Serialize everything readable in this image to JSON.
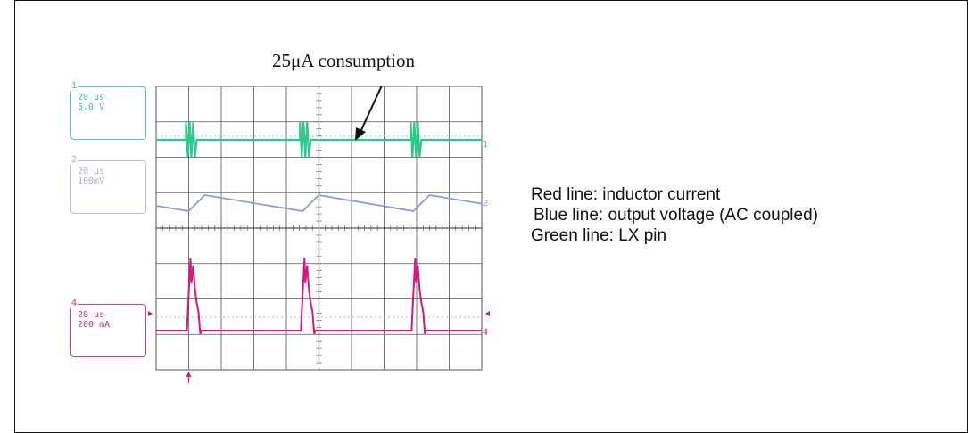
{
  "annotation": "25μA consumption",
  "channels": [
    {
      "num": "1",
      "timebase": "20 μs",
      "scale": "5.0 V",
      "color": "#2ec98a",
      "marker": "1"
    },
    {
      "num": "2",
      "timebase": "20 μs",
      "scale": "100mV",
      "color": "#8f9be0",
      "marker": "2"
    },
    {
      "num": "4",
      "timebase": "20 μs",
      "scale": "200 mA",
      "color": "#d6177e",
      "marker": "4"
    }
  ],
  "legend": [
    "Red line: inductor current",
    "Blue line: output voltage (AC coupled)",
    "Green line: LX pin"
  ],
  "colors": {
    "green": "#2ec98a",
    "blue": "#8f9be0",
    "red": "#d6177e",
    "grid": "#555555",
    "dotted": "#bbbbbb"
  },
  "chart_data": {
    "type": "line",
    "title": "25μA consumption",
    "x_div_time": "20 μs",
    "grid": true,
    "divisions": {
      "x": 10,
      "y": 8
    },
    "pulse_times_div": [
      1.0,
      4.5,
      7.9
    ],
    "series": [
      {
        "name": "Green line: LX pin",
        "scale": "5.0 V/div",
        "shape": "switching bursts at each refresh"
      },
      {
        "name": "Blue line: output voltage (AC coupled)",
        "scale": "100mV/div",
        "shape": "sawtooth, sharp rise at each pulse then linear decay"
      },
      {
        "name": "Red line: inductor current",
        "scale": "200 mA/div",
        "shape": "current spikes at each pulse"
      }
    ]
  }
}
